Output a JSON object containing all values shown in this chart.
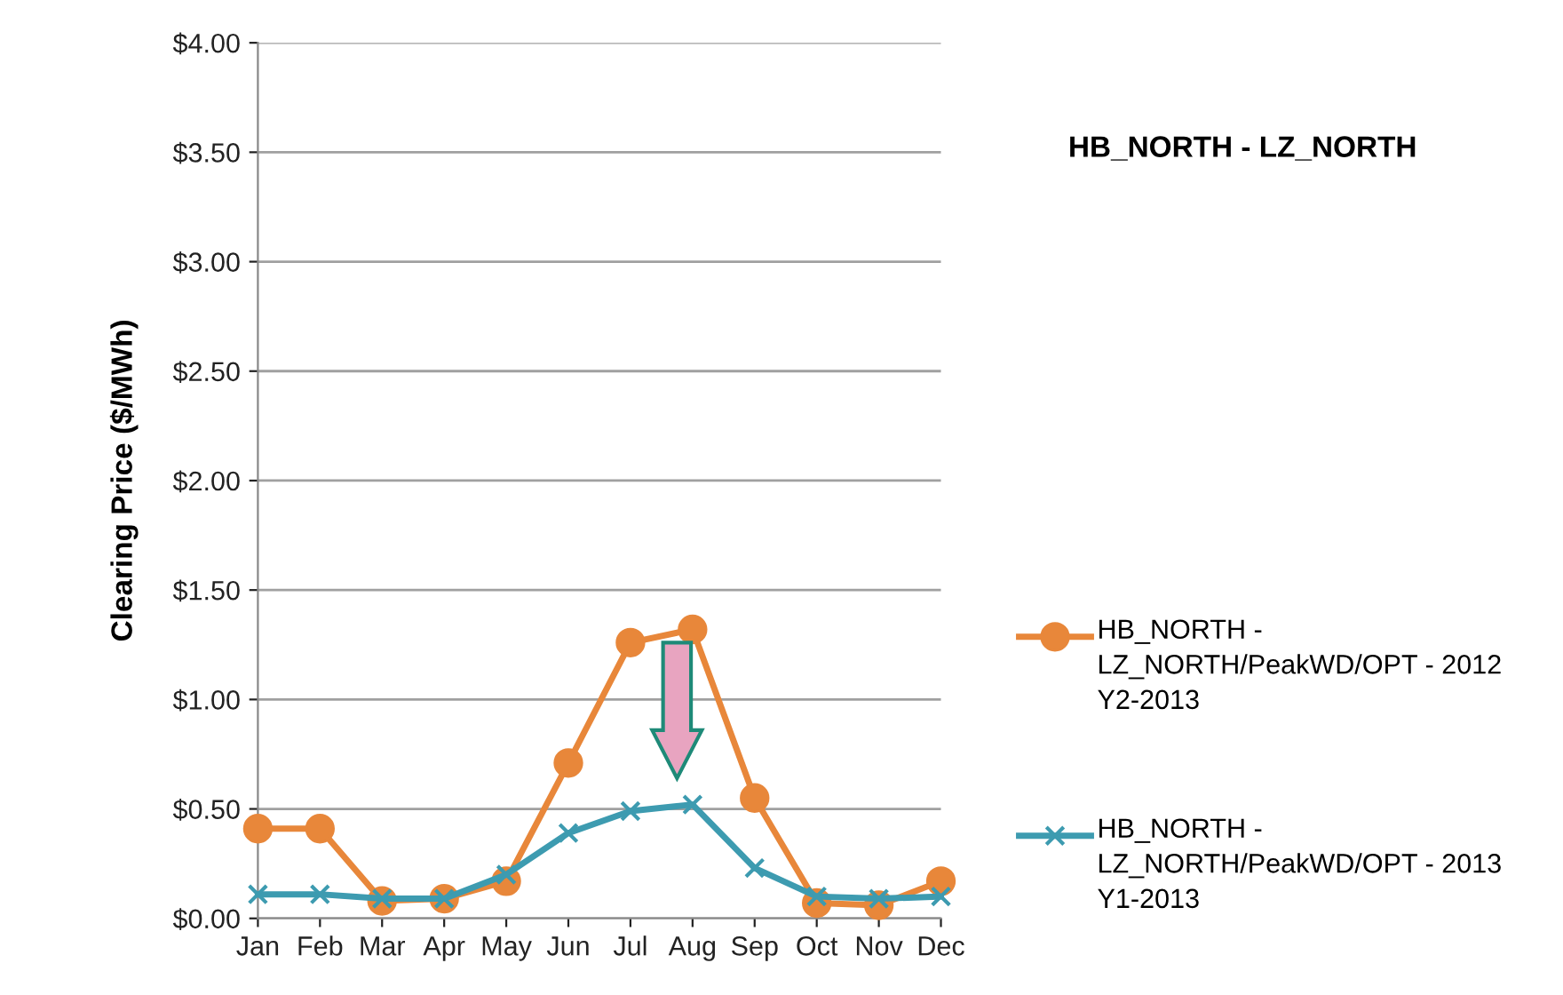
{
  "chart_data": {
    "type": "line",
    "title": "HB_NORTH - LZ_NORTH",
    "ylabel": "Clearing Price ($/MWh)",
    "categories": [
      "Jan",
      "Feb",
      "Mar",
      "Apr",
      "May",
      "Jun",
      "Jul",
      "Aug",
      "Sep",
      "Oct",
      "Nov",
      "Dec"
    ],
    "series": [
      {
        "name": "HB_NORTH - LZ_NORTH/PeakWD/OPT - 2012 Y2-2013",
        "color": "#e8873a",
        "marker": "circle",
        "values": [
          0.41,
          0.41,
          0.08,
          0.09,
          0.17,
          0.71,
          1.26,
          1.32,
          0.55,
          0.07,
          0.06,
          0.17
        ]
      },
      {
        "name": "HB_NORTH - LZ_NORTH/PeakWD/OPT - 2013 Y1-2013",
        "color": "#3d9bb0",
        "marker": "cross",
        "values": [
          0.11,
          0.11,
          0.09,
          0.09,
          0.2,
          0.39,
          0.49,
          0.52,
          0.23,
          0.1,
          0.09,
          0.1
        ]
      }
    ],
    "ylim": [
      0,
      4
    ],
    "yticks": [
      {
        "value": 0,
        "label": "$0.00"
      },
      {
        "value": 0.5,
        "label": "$0.50"
      },
      {
        "value": 1,
        "label": "$1.00"
      },
      {
        "value": 1.5,
        "label": "$1.50"
      },
      {
        "value": 2,
        "label": "$2.00"
      },
      {
        "value": 2.5,
        "label": "$2.50"
      },
      {
        "value": 3,
        "label": "$3.00"
      },
      {
        "value": 3.5,
        "label": "$3.50"
      },
      {
        "value": 4,
        "label": "$4.00"
      }
    ],
    "grid": "y",
    "legend": "right",
    "line_style": "solid"
  }
}
